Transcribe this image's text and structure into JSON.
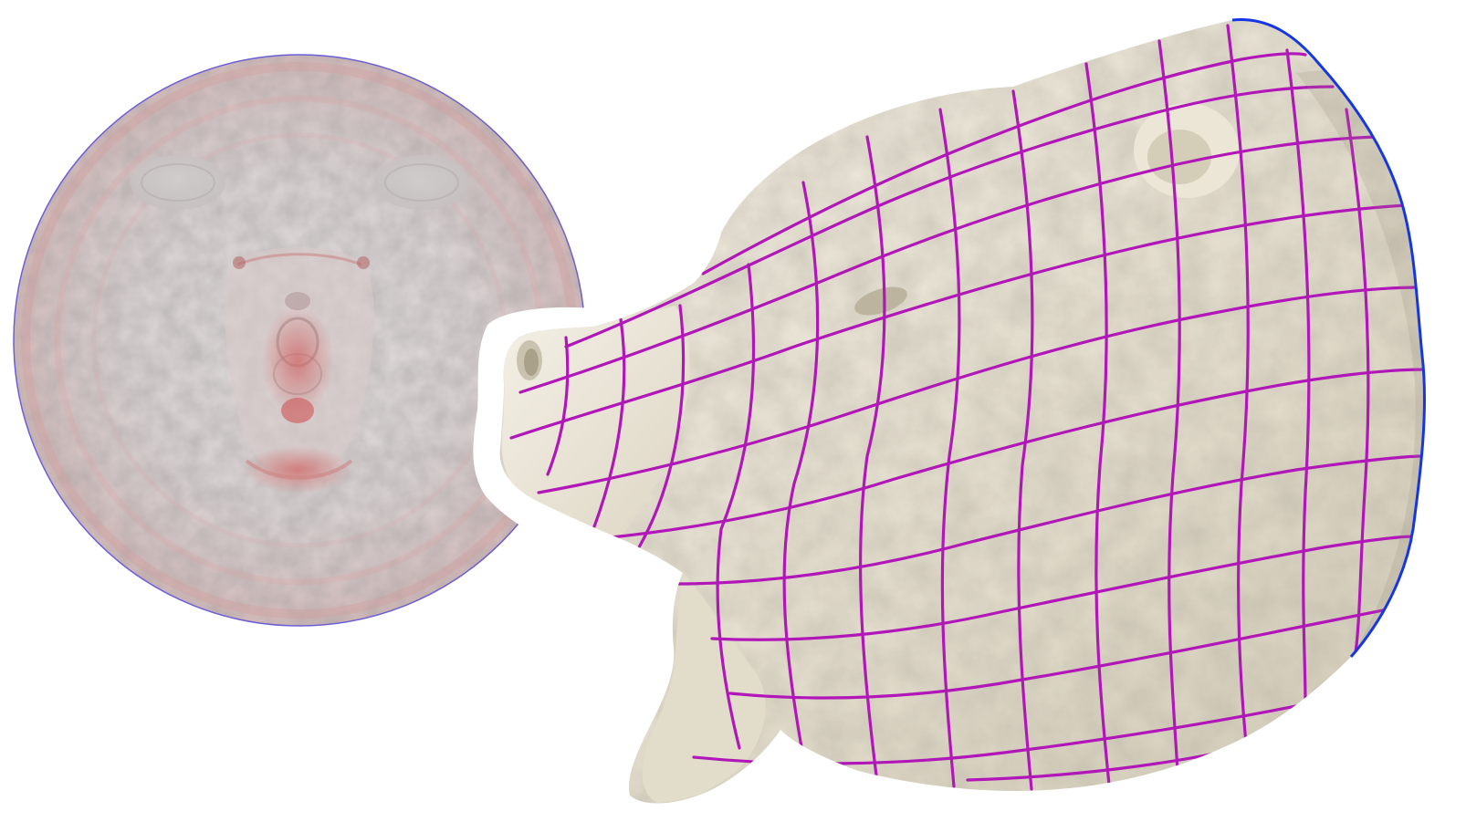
{
  "figure": {
    "panels": [
      {
        "id": "uv-disk",
        "kind": "parameterization-disk"
      },
      {
        "id": "bear-head",
        "kind": "3d-mesh-with-grid"
      }
    ],
    "colors": {
      "background": "#ffffff",
      "disk_fill": "#d9d2d2",
      "disk_tint": "#cf8c8c",
      "disk_boundary": "#5a4fd0",
      "mesh_surface": "#e9e4d6",
      "mesh_shadow": "#b9b39f",
      "grid_lines": "#b116b8",
      "boundary_line": "#1436e6",
      "halo": "#ffffff"
    }
  }
}
